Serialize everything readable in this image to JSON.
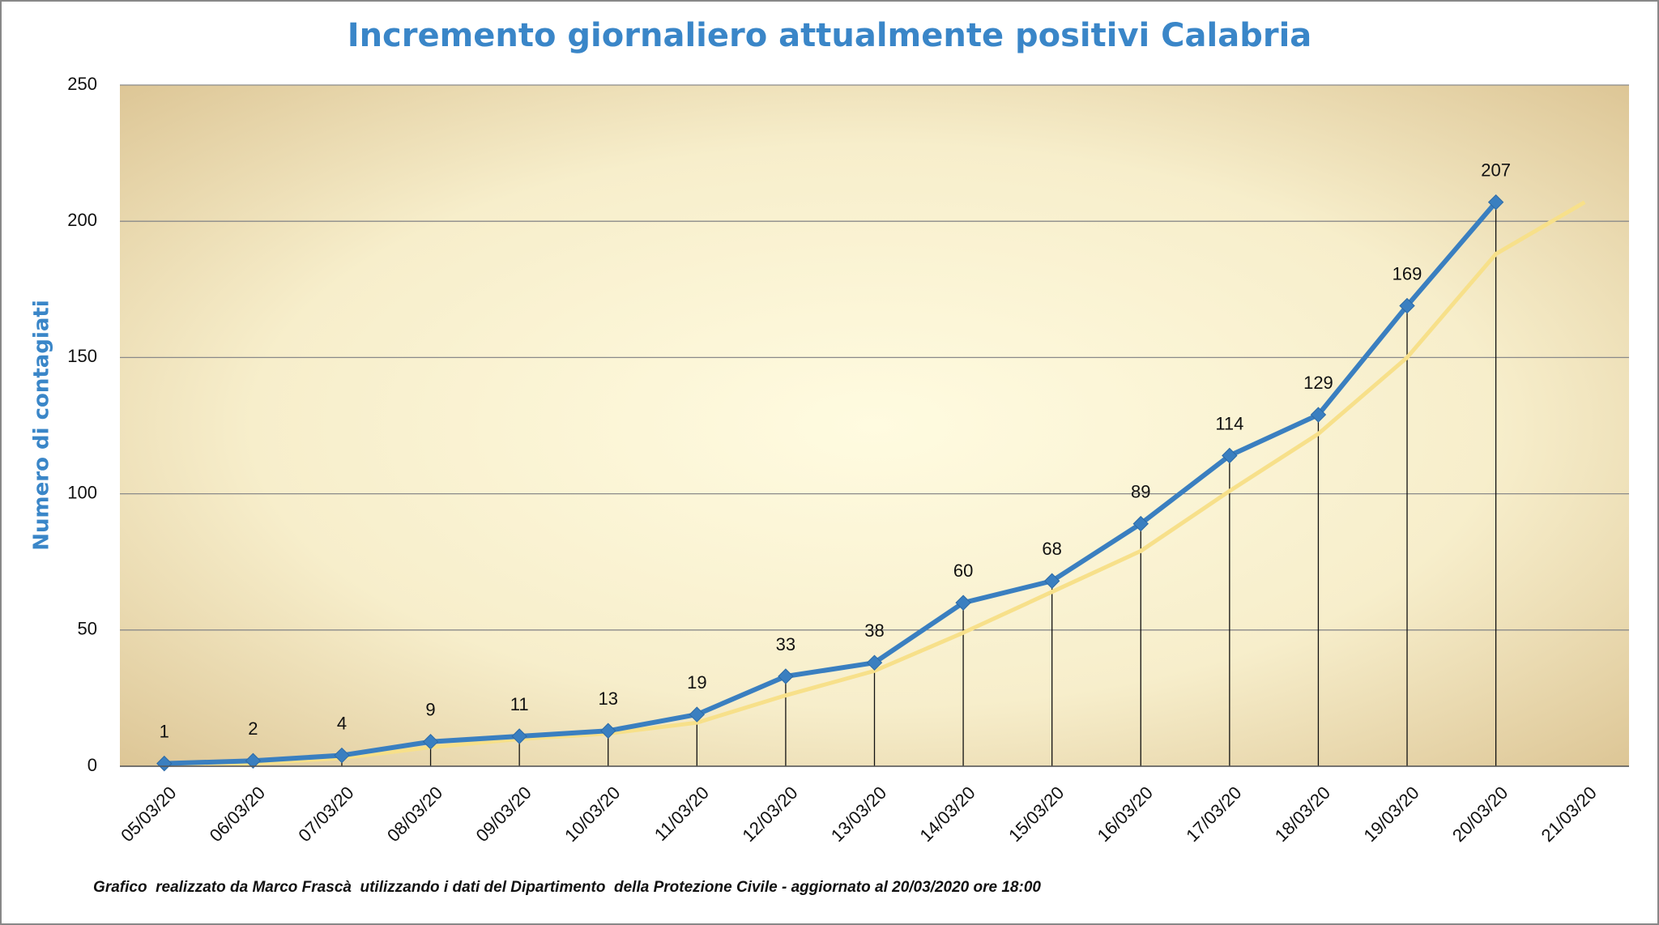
{
  "chart_data": {
    "type": "line",
    "title": "Incremento giornaliero attualmente positivi Calabria",
    "y_label": "Numero di contagiati",
    "footnote": "Grafico  realizzato da Marco Frascà  utilizzando i dati del Dipartimento  della Protezione Civile - aggiornato al 20/03/2020 ore 18:00",
    "categories": [
      "05/03/20",
      "06/03/20",
      "07/03/20",
      "08/03/20",
      "09/03/20",
      "10/03/20",
      "11/03/20",
      "12/03/20",
      "13/03/20",
      "14/03/20",
      "15/03/20",
      "16/03/20",
      "17/03/20",
      "18/03/20",
      "19/03/20",
      "20/03/20",
      "21/03/20"
    ],
    "series": [
      {
        "color": "#f7e08a",
        "values": [
          1,
          1,
          3,
          7,
          10,
          12,
          16,
          26,
          35,
          49,
          64,
          79,
          101,
          122,
          150,
          188,
          207
        ]
      },
      {
        "color": "#3a7fc0",
        "values": [
          1,
          2,
          4,
          9,
          11,
          13,
          19,
          33,
          38,
          60,
          68,
          89,
          114,
          129,
          169,
          207,
          null
        ],
        "data_labels": true,
        "drop_lines": true
      }
    ],
    "ylim": [
      0,
      250
    ],
    "yticks": [
      0,
      50,
      100,
      150,
      200,
      250
    ],
    "grid": true
  }
}
